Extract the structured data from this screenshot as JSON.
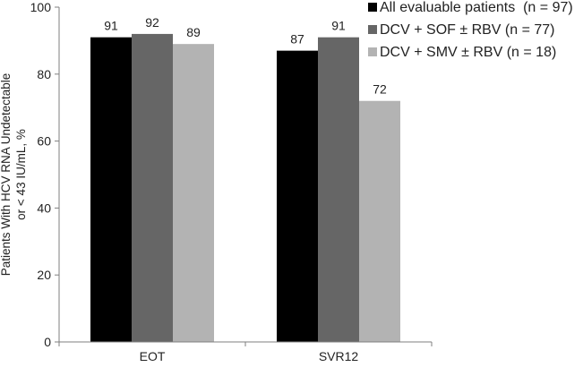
{
  "chart_data": {
    "type": "bar",
    "title": "",
    "xlabel": "",
    "ylabel_line1": "Patients With HCV RNA Undetectable",
    "ylabel_line2": "or < 43 IU/mL, %",
    "ylim": [
      0,
      100
    ],
    "yticks": [
      0,
      20,
      40,
      60,
      80,
      100
    ],
    "categories": [
      "EOT",
      "SVR12"
    ],
    "series": [
      {
        "name": "All evaluable patients  (n = 97)",
        "values": [
          91,
          87
        ],
        "color": "#000000"
      },
      {
        "name": "DCV + SOF ± RBV (n = 77)",
        "values": [
          92,
          91
        ],
        "color": "#666666"
      },
      {
        "name": "DCV + SMV ± RBV (n = 18)",
        "values": [
          89,
          72
        ],
        "color": "#b3b3b3"
      }
    ],
    "value_labels": [
      [
        "91",
        "87"
      ],
      [
        "92",
        "91"
      ],
      [
        "89",
        "72"
      ]
    ],
    "grid": false,
    "legend_position": "top-right"
  }
}
